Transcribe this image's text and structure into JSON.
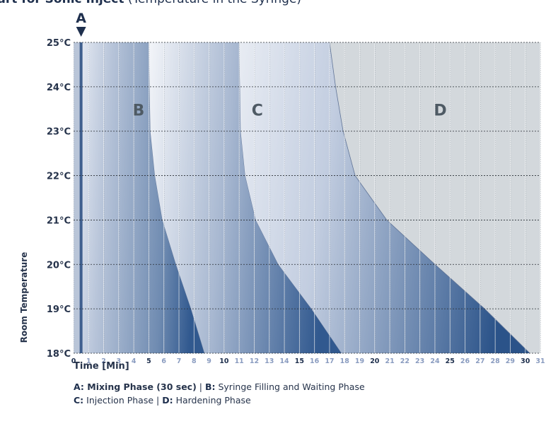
{
  "chart_data": {
    "type": "area",
    "title": "Handling Chart for Sonic Inject",
    "title_rest": " (Temperature in the Syringe)",
    "xlabel": "Time [Min]",
    "ylabel": "Room Temperature",
    "xlim": [
      0,
      31
    ],
    "ylim": [
      18,
      25
    ],
    "x_ticks": [
      0,
      1,
      2,
      3,
      4,
      5,
      6,
      7,
      8,
      9,
      10,
      11,
      12,
      13,
      14,
      15,
      16,
      17,
      18,
      19,
      20,
      21,
      22,
      23,
      24,
      25,
      26,
      27,
      28,
      29,
      30,
      31
    ],
    "x_major_ticks": [
      0,
      5,
      10,
      15,
      20,
      25,
      30
    ],
    "y_ticks": [
      "18°C",
      "19°C",
      "20°C",
      "21°C",
      "22°C",
      "23°C",
      "24°C",
      "25°C"
    ],
    "grid": true,
    "marker": {
      "label": "A",
      "x": 0.5
    },
    "regions": [
      {
        "label": "A",
        "start": [
          0.5,
          0.5,
          0.5,
          0.5,
          0.5,
          0.5,
          0.5,
          0.5
        ],
        "end": [
          0.5,
          0.5,
          0.5,
          0.5,
          0.5,
          0.5,
          0.5,
          0.5
        ]
      },
      {
        "label": "B",
        "label_x": 4.3,
        "label_y": 23.5,
        "end": [
          8.7,
          7.8,
          6.8,
          5.9,
          5.4,
          5.1,
          5.05,
          5.0
        ]
      },
      {
        "label": "C",
        "label_x": 12.2,
        "label_y": 23.5,
        "end": [
          17.8,
          15.8,
          13.6,
          12.1,
          11.4,
          11.1,
          11.05,
          11.0
        ]
      },
      {
        "label": "D",
        "label_x": 24.3,
        "label_y": 23.5,
        "end": [
          30.3,
          27.3,
          24.0,
          20.8,
          18.7,
          17.9,
          17.4,
          17.0
        ]
      }
    ],
    "temperatures": [
      18,
      19,
      20,
      21,
      22,
      23,
      24,
      25
    ],
    "colors": {
      "dark": "#31598f",
      "light": "#e3e8f1",
      "after": "#d3d8dc",
      "marker": "#1e2f4d"
    }
  },
  "legend": {
    "line1": [
      {
        "key": "A:",
        "text": " Mixing Phase (30 sec)",
        "bold": true
      },
      {
        "sep": " | "
      },
      {
        "key": "B:",
        "text": " Syringe Filling and Waiting Phase",
        "bold": false
      }
    ],
    "line2": [
      {
        "key": "C:",
        "text": " Injection Phase",
        "bold": false
      },
      {
        "sep": " | "
      },
      {
        "key": "D:",
        "text": " Hardening Phase",
        "bold": false
      }
    ]
  }
}
